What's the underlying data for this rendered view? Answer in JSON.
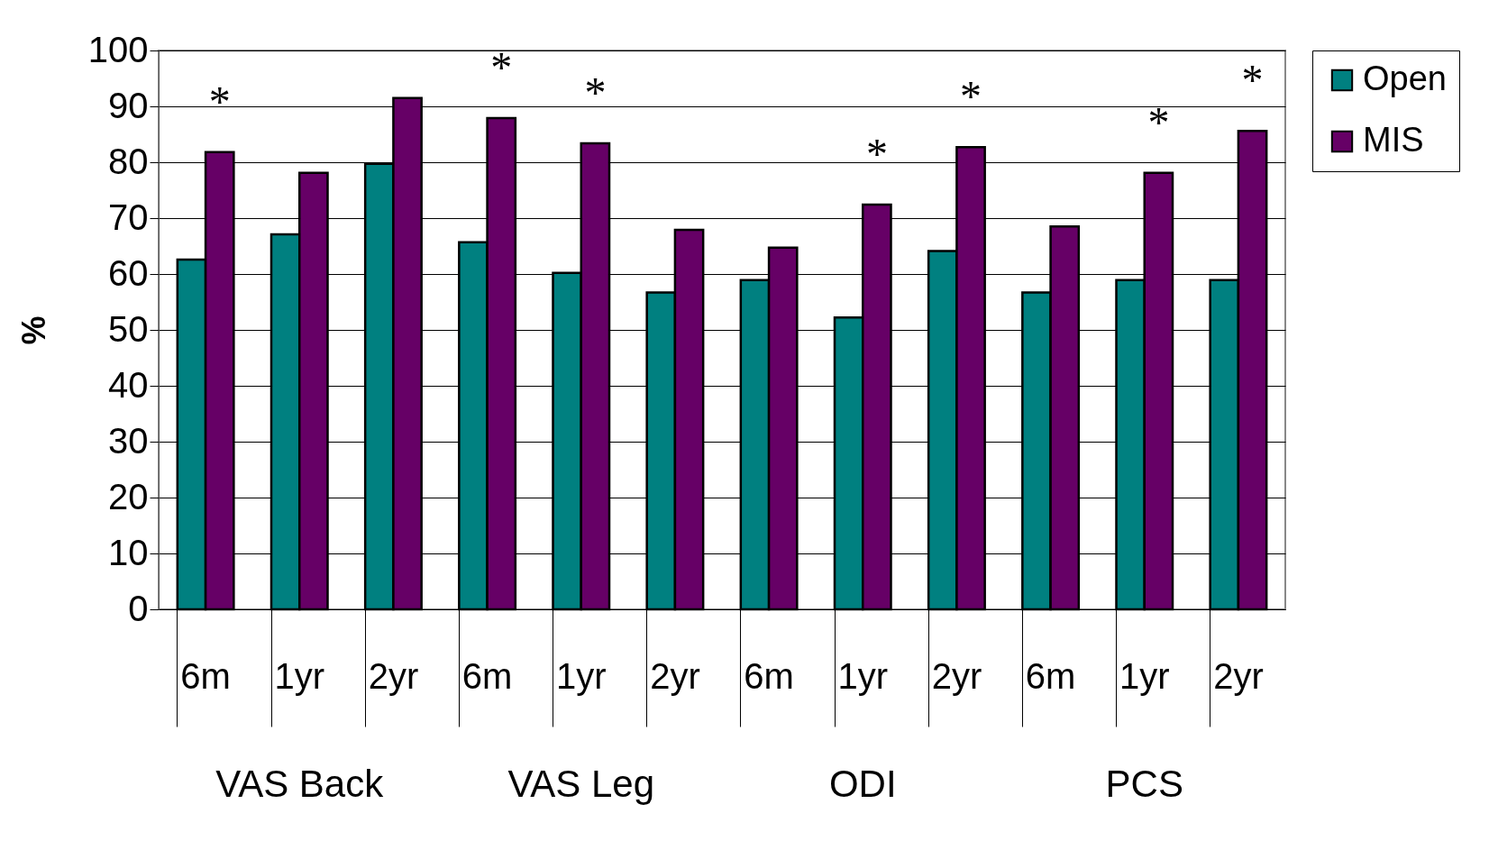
{
  "chart_data": {
    "type": "bar",
    "ylabel": "%",
    "categories": [
      "6m",
      "1yr",
      "2yr",
      "6m",
      "1yr",
      "2yr",
      "6m",
      "1yr",
      "2yr",
      "6m",
      "1yr",
      "2yr"
    ],
    "series": [
      {
        "name": "Open",
        "color": "#008080",
        "values": [
          62.6,
          67.1,
          79.7,
          65.7,
          60.2,
          56.7,
          58.9,
          52.2,
          64.1,
          56.7,
          58.9,
          58.9
        ]
      },
      {
        "name": "MIS",
        "color": "#660066",
        "values": [
          81.8,
          78.1,
          91.5,
          87.9,
          83.4,
          67.9,
          64.7,
          72.4,
          82.7,
          68.5,
          78.1,
          85.6
        ],
        "value_labels": [
          "*",
          null,
          null,
          "*",
          "*",
          null,
          null,
          "*",
          "*",
          null,
          "*",
          "*"
        ]
      }
    ],
    "annotations": [
      "VAS Back",
      "VAS Leg",
      "ODI",
      "PCS"
    ],
    "ylim": [
      0,
      100
    ],
    "yticks": [
      0,
      10,
      20,
      30,
      40,
      50,
      60,
      70,
      80,
      90,
      100
    ],
    "grid": "y",
    "legend": "right"
  }
}
